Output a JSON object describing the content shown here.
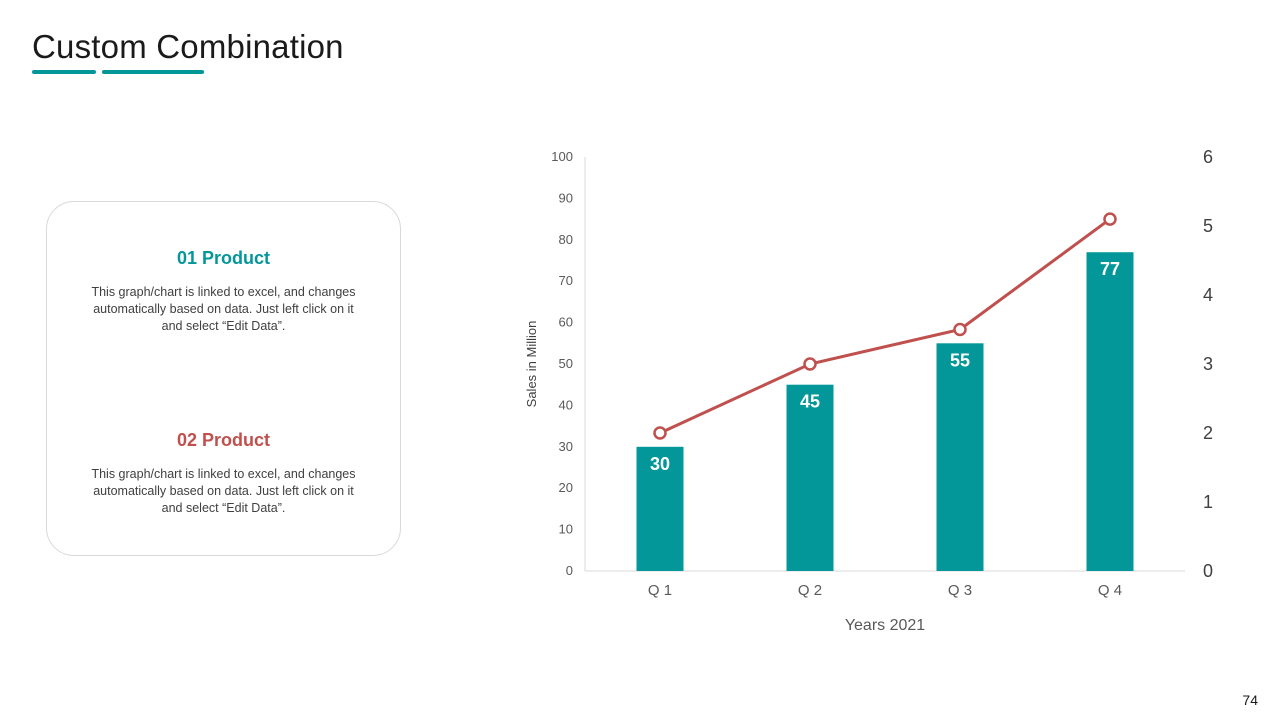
{
  "slide": {
    "title": "Custom Combination",
    "page_number": "74",
    "accent_color": "#04979a",
    "secondary_color": "#c0504d"
  },
  "legend": [
    {
      "heading": "01 Product",
      "text": "This graph/chart is linked to excel, and changes automatically based on data. Just left click on it and select “Edit Data”.",
      "color": "#04979a"
    },
    {
      "heading": "02 Product",
      "text": "This graph/chart is linked to excel, and changes automatically based on data. Just left click on it and select “Edit Data”.",
      "color": "#c0504d"
    }
  ],
  "chart_data": {
    "type": "bar",
    "categories": [
      "Q 1",
      "Q 2",
      "Q 3",
      "Q 4"
    ],
    "series": [
      {
        "name": "01 Product",
        "kind": "bar",
        "axis": "left",
        "values": [
          30,
          45,
          55,
          77
        ],
        "color": "#04979a",
        "data_labels": [
          "30",
          "45",
          "55",
          "77"
        ]
      },
      {
        "name": "02 Product",
        "kind": "line",
        "axis": "right",
        "values": [
          2,
          3,
          3.5,
          5.1
        ],
        "color": "#c0504d"
      }
    ],
    "xlabel": "Years 2021",
    "ylabel": "Sales in Million",
    "ylim": [
      0,
      100
    ],
    "yticks": [
      "0",
      "10",
      "20",
      "30",
      "40",
      "50",
      "60",
      "70",
      "80",
      "90",
      "100"
    ],
    "y2lim": [
      0,
      6
    ],
    "y2ticks": [
      "0",
      "1",
      "2",
      "3",
      "4",
      "5",
      "6"
    ],
    "grid": false
  }
}
